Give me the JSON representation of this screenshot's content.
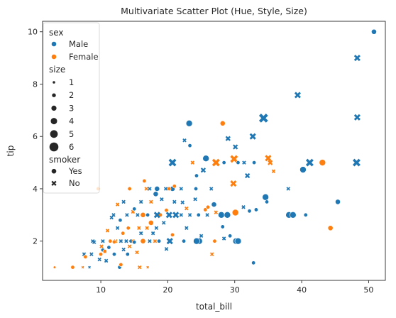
{
  "chart_data": {
    "type": "scatter",
    "title": "Multivariate Scatter Plot (Hue, Style, Size)",
    "xlabel": "total_bill",
    "ylabel": "tip",
    "xlim": [
      1.3,
      52.5
    ],
    "ylim": [
      0.5,
      10.4
    ],
    "xticks": [
      10,
      20,
      30,
      40,
      50
    ],
    "yticks": [
      2,
      4,
      6,
      8,
      10
    ],
    "grid": false,
    "legend_position": "top-left",
    "colors": {
      "Male": "#1f77b4",
      "Female": "#ff7f0e"
    },
    "legend": {
      "hue_title": "sex",
      "hue": [
        "Male",
        "Female"
      ],
      "size_title": "size",
      "sizes": [
        "1",
        "2",
        "3",
        "4",
        "5",
        "6"
      ],
      "style_title": "smoker",
      "styles": [
        "Yes",
        "No"
      ]
    },
    "points": [
      {
        "x": 50.8,
        "y": 10.0,
        "sex": "Male",
        "smoker": "Yes",
        "size": 3
      },
      {
        "x": 48.3,
        "y": 9.0,
        "sex": "Male",
        "smoker": "No",
        "size": 4
      },
      {
        "x": 39.4,
        "y": 7.58,
        "sex": "Male",
        "smoker": "No",
        "size": 4
      },
      {
        "x": 48.3,
        "y": 6.73,
        "sex": "Male",
        "smoker": "No",
        "size": 4
      },
      {
        "x": 34.3,
        "y": 6.7,
        "sex": "Male",
        "smoker": "No",
        "size": 6
      },
      {
        "x": 23.2,
        "y": 6.5,
        "sex": "Male",
        "smoker": "Yes",
        "size": 4
      },
      {
        "x": 28.2,
        "y": 6.5,
        "sex": "Female",
        "smoker": "Yes",
        "size": 3
      },
      {
        "x": 32.7,
        "y": 6.0,
        "sex": "Male",
        "smoker": "No",
        "size": 4
      },
      {
        "x": 29.0,
        "y": 5.92,
        "sex": "Male",
        "smoker": "No",
        "size": 3
      },
      {
        "x": 30.1,
        "y": 5.6,
        "sex": "Male",
        "smoker": "No",
        "size": 3
      },
      {
        "x": 23.3,
        "y": 5.65,
        "sex": "Male",
        "smoker": "Yes",
        "size": 2
      },
      {
        "x": 22.5,
        "y": 5.85,
        "sex": "Male",
        "smoker": "No",
        "size": 2
      },
      {
        "x": 25.7,
        "y": 5.16,
        "sex": "Male",
        "smoker": "Yes",
        "size": 4
      },
      {
        "x": 29.9,
        "y": 5.14,
        "sex": "Female",
        "smoker": "No",
        "size": 5
      },
      {
        "x": 35.0,
        "y": 5.17,
        "sex": "Female",
        "smoker": "No",
        "size": 4
      },
      {
        "x": 28.4,
        "y": 5.0,
        "sex": "Male",
        "smoker": "Yes",
        "size": 2
      },
      {
        "x": 20.7,
        "y": 5.0,
        "sex": "Male",
        "smoker": "No",
        "size": 5
      },
      {
        "x": 27.2,
        "y": 5.0,
        "sex": "Female",
        "smoker": "No",
        "size": 5
      },
      {
        "x": 30.5,
        "y": 5.0,
        "sex": "Male",
        "smoker": "Yes",
        "size": 2
      },
      {
        "x": 35.3,
        "y": 5.0,
        "sex": "Female",
        "smoker": "No",
        "size": 3
      },
      {
        "x": 41.2,
        "y": 5.0,
        "sex": "Male",
        "smoker": "No",
        "size": 5
      },
      {
        "x": 43.1,
        "y": 5.0,
        "sex": "Female",
        "smoker": "Yes",
        "size": 4
      },
      {
        "x": 48.2,
        "y": 5.0,
        "sex": "Male",
        "smoker": "No",
        "size": 5
      },
      {
        "x": 23.7,
        "y": 5.0,
        "sex": "Female",
        "smoker": "No",
        "size": 2
      },
      {
        "x": 31.4,
        "y": 5.0,
        "sex": "Male",
        "smoker": "No",
        "size": 2
      },
      {
        "x": 32.9,
        "y": 5.0,
        "sex": "Male",
        "smoker": "Yes",
        "size": 2
      },
      {
        "x": 40.2,
        "y": 4.73,
        "sex": "Male",
        "smoker": "Yes",
        "size": 4
      },
      {
        "x": 35.8,
        "y": 4.67,
        "sex": "Female",
        "smoker": "No",
        "size": 2
      },
      {
        "x": 25.3,
        "y": 4.71,
        "sex": "Male",
        "smoker": "No",
        "size": 3
      },
      {
        "x": 31.9,
        "y": 4.5,
        "sex": "Male",
        "smoker": "No",
        "size": 3
      },
      {
        "x": 24.3,
        "y": 4.5,
        "sex": "Male",
        "smoker": "Yes",
        "size": 2
      },
      {
        "x": 29.8,
        "y": 4.2,
        "sex": "Female",
        "smoker": "No",
        "size": 4
      },
      {
        "x": 38.0,
        "y": 4.0,
        "sex": "Male",
        "smoker": "No",
        "size": 2
      },
      {
        "x": 26.5,
        "y": 4.0,
        "sex": "Male",
        "smoker": "No",
        "size": 2
      },
      {
        "x": 24.2,
        "y": 4.0,
        "sex": "Male",
        "smoker": "Yes",
        "size": 2
      },
      {
        "x": 20.7,
        "y": 4.0,
        "sex": "Male",
        "smoker": "Yes",
        "size": 3
      },
      {
        "x": 20.2,
        "y": 4.0,
        "sex": "Female",
        "smoker": "Yes",
        "size": 2
      },
      {
        "x": 18.4,
        "y": 4.0,
        "sex": "Male",
        "smoker": "Yes",
        "size": 3
      },
      {
        "x": 19.7,
        "y": 4.0,
        "sex": "Male",
        "smoker": "No",
        "size": 2
      },
      {
        "x": 16.8,
        "y": 4.0,
        "sex": "Female",
        "smoker": "No",
        "size": 2
      },
      {
        "x": 9.6,
        "y": 4.0,
        "sex": "Female",
        "smoker": "Yes",
        "size": 2
      },
      {
        "x": 14.3,
        "y": 4.0,
        "sex": "Female",
        "smoker": "Yes",
        "size": 2
      },
      {
        "x": 16.5,
        "y": 4.3,
        "sex": "Female",
        "smoker": "Yes",
        "size": 2
      },
      {
        "x": 17.3,
        "y": 4.0,
        "sex": "Male",
        "smoker": "No",
        "size": 2
      },
      {
        "x": 21.0,
        "y": 4.1,
        "sex": "Female",
        "smoker": "Yes",
        "size": 2
      },
      {
        "x": 22.0,
        "y": 4.0,
        "sex": "Male",
        "smoker": "No",
        "size": 2
      },
      {
        "x": 24.1,
        "y": 3.6,
        "sex": "Male",
        "smoker": "No",
        "size": 2
      },
      {
        "x": 34.6,
        "y": 3.68,
        "sex": "Male",
        "smoker": "Yes",
        "size": 4
      },
      {
        "x": 34.8,
        "y": 3.5,
        "sex": "Male",
        "smoker": "Yes",
        "size": 2
      },
      {
        "x": 45.4,
        "y": 3.5,
        "sex": "Male",
        "smoker": "Yes",
        "size": 3
      },
      {
        "x": 26.9,
        "y": 3.4,
        "sex": "Male",
        "smoker": "Yes",
        "size": 3
      },
      {
        "x": 31.3,
        "y": 3.3,
        "sex": "Male",
        "smoker": "No",
        "size": 2
      },
      {
        "x": 22.8,
        "y": 3.25,
        "sex": "Female",
        "smoker": "No",
        "size": 2
      },
      {
        "x": 25.6,
        "y": 3.2,
        "sex": "Female",
        "smoker": "Yes",
        "size": 2
      },
      {
        "x": 27.2,
        "y": 3.1,
        "sex": "Female",
        "smoker": "No",
        "size": 2
      },
      {
        "x": 28.0,
        "y": 3.0,
        "sex": "Male",
        "smoker": "Yes",
        "size": 4
      },
      {
        "x": 28.9,
        "y": 3.0,
        "sex": "Male",
        "smoker": "Yes",
        "size": 4
      },
      {
        "x": 30.1,
        "y": 3.09,
        "sex": "Female",
        "smoker": "Yes",
        "size": 4
      },
      {
        "x": 32.2,
        "y": 3.15,
        "sex": "Male",
        "smoker": "Yes",
        "size": 2
      },
      {
        "x": 33.2,
        "y": 3.2,
        "sex": "Male",
        "smoker": "Yes",
        "size": 2
      },
      {
        "x": 38.1,
        "y": 3.0,
        "sex": "Male",
        "smoker": "Yes",
        "size": 4
      },
      {
        "x": 38.7,
        "y": 3.0,
        "sex": "Male",
        "smoker": "Yes",
        "size": 4
      },
      {
        "x": 40.6,
        "y": 3.0,
        "sex": "Male",
        "smoker": "Yes",
        "size": 2
      },
      {
        "x": 44.3,
        "y": 2.5,
        "sex": "Female",
        "smoker": "Yes",
        "size": 3
      },
      {
        "x": 28.2,
        "y": 2.55,
        "sex": "Male",
        "smoker": "Yes",
        "size": 2
      },
      {
        "x": 29.3,
        "y": 2.2,
        "sex": "Male",
        "smoker": "Yes",
        "size": 2
      },
      {
        "x": 30.2,
        "y": 2.0,
        "sex": "Male",
        "smoker": "Yes",
        "size": 4
      },
      {
        "x": 30.5,
        "y": 2.0,
        "sex": "Male",
        "smoker": "Yes",
        "size": 4
      },
      {
        "x": 28.4,
        "y": 2.1,
        "sex": "Male",
        "smoker": "No",
        "size": 2
      },
      {
        "x": 26.6,
        "y": 1.5,
        "sex": "Female",
        "smoker": "No",
        "size": 2
      },
      {
        "x": 32.8,
        "y": 1.17,
        "sex": "Male",
        "smoker": "Yes",
        "size": 2
      },
      {
        "x": 27.0,
        "y": 2.0,
        "sex": "Female",
        "smoker": "Yes",
        "size": 2
      },
      {
        "x": 25.0,
        "y": 2.2,
        "sex": "Male",
        "smoker": "No",
        "size": 2
      },
      {
        "x": 24.7,
        "y": 2.0,
        "sex": "Male",
        "smoker": "Yes",
        "size": 4
      },
      {
        "x": 24.3,
        "y": 2.0,
        "sex": "Male",
        "smoker": "Yes",
        "size": 4
      },
      {
        "x": 22.4,
        "y": 2.0,
        "sex": "Male",
        "smoker": "Yes",
        "size": 2
      },
      {
        "x": 22.8,
        "y": 2.5,
        "sex": "Male",
        "smoker": "No",
        "size": 2
      },
      {
        "x": 20.3,
        "y": 2.0,
        "sex": "Male",
        "smoker": "No",
        "size": 4
      },
      {
        "x": 23.3,
        "y": 3.0,
        "sex": "Male",
        "smoker": "No",
        "size": 2
      },
      {
        "x": 22.0,
        "y": 3.0,
        "sex": "Male",
        "smoker": "No",
        "size": 2
      },
      {
        "x": 21.2,
        "y": 3.0,
        "sex": "Male",
        "smoker": "No",
        "size": 4
      },
      {
        "x": 20.2,
        "y": 3.0,
        "sex": "Male",
        "smoker": "No",
        "size": 4
      },
      {
        "x": 19.8,
        "y": 3.18,
        "sex": "Female",
        "smoker": "Yes",
        "size": 2
      },
      {
        "x": 18.9,
        "y": 3.0,
        "sex": "Female",
        "smoker": "Yes",
        "size": 2
      },
      {
        "x": 18.4,
        "y": 3.0,
        "sex": "Male",
        "smoker": "No",
        "size": 4
      },
      {
        "x": 17.0,
        "y": 3.0,
        "sex": "Male",
        "smoker": "Yes",
        "size": 2
      },
      {
        "x": 16.3,
        "y": 3.0,
        "sex": "Female",
        "smoker": "Yes",
        "size": 3
      },
      {
        "x": 15.5,
        "y": 3.0,
        "sex": "Male",
        "smoker": "No",
        "size": 2
      },
      {
        "x": 14.8,
        "y": 3.12,
        "sex": "Female",
        "smoker": "No",
        "size": 2
      },
      {
        "x": 13.9,
        "y": 3.0,
        "sex": "Male",
        "smoker": "No",
        "size": 2
      },
      {
        "x": 12.9,
        "y": 2.8,
        "sex": "Male",
        "smoker": "Yes",
        "size": 2
      },
      {
        "x": 11.6,
        "y": 2.9,
        "sex": "Male",
        "smoker": "No",
        "size": 2
      },
      {
        "x": 10.3,
        "y": 2.0,
        "sex": "Male",
        "smoker": "No",
        "size": 2
      },
      {
        "x": 10.0,
        "y": 1.5,
        "sex": "Female",
        "smoker": "Yes",
        "size": 2
      },
      {
        "x": 10.6,
        "y": 1.6,
        "sex": "Female",
        "smoker": "No",
        "size": 2
      },
      {
        "x": 11.2,
        "y": 1.76,
        "sex": "Male",
        "smoker": "Yes",
        "size": 2
      },
      {
        "x": 12.0,
        "y": 1.5,
        "sex": "Male",
        "smoker": "Yes",
        "size": 2
      },
      {
        "x": 12.8,
        "y": 1.0,
        "sex": "Male",
        "smoker": "Yes",
        "size": 2
      },
      {
        "x": 13.0,
        "y": 1.1,
        "sex": "Female",
        "smoker": "Yes",
        "size": 2
      },
      {
        "x": 13.4,
        "y": 1.68,
        "sex": "Male",
        "smoker": "No",
        "size": 2
      },
      {
        "x": 7.3,
        "y": 1.0,
        "sex": "Female",
        "smoker": "No",
        "size": 1
      },
      {
        "x": 5.8,
        "y": 1.0,
        "sex": "Female",
        "smoker": "Yes",
        "size": 2
      },
      {
        "x": 3.1,
        "y": 1.0,
        "sex": "Female",
        "smoker": "Yes",
        "size": 1
      },
      {
        "x": 7.5,
        "y": 1.5,
        "sex": "Male",
        "smoker": "No",
        "size": 2
      },
      {
        "x": 8.6,
        "y": 1.5,
        "sex": "Male",
        "smoker": "No",
        "size": 2
      },
      {
        "x": 8.8,
        "y": 2.0,
        "sex": "Male",
        "smoker": "No",
        "size": 2
      },
      {
        "x": 9.8,
        "y": 1.3,
        "sex": "Male",
        "smoker": "No",
        "size": 2
      },
      {
        "x": 10.1,
        "y": 1.8,
        "sex": "Female",
        "smoker": "No",
        "size": 2
      },
      {
        "x": 10.3,
        "y": 1.66,
        "sex": "Male",
        "smoker": "Yes",
        "size": 2
      },
      {
        "x": 10.6,
        "y": 1.61,
        "sex": "Female",
        "smoker": "Yes",
        "size": 2
      },
      {
        "x": 11.4,
        "y": 2.0,
        "sex": "Female",
        "smoker": "Yes",
        "size": 2
      },
      {
        "x": 12.2,
        "y": 2.0,
        "sex": "Female",
        "smoker": "No",
        "size": 2
      },
      {
        "x": 12.5,
        "y": 2.5,
        "sex": "Male",
        "smoker": "No",
        "size": 2
      },
      {
        "x": 13.0,
        "y": 2.0,
        "sex": "Male",
        "smoker": "No",
        "size": 2
      },
      {
        "x": 13.3,
        "y": 2.3,
        "sex": "Female",
        "smoker": "Yes",
        "size": 2
      },
      {
        "x": 13.8,
        "y": 2.0,
        "sex": "Male",
        "smoker": "No",
        "size": 2
      },
      {
        "x": 14.1,
        "y": 2.5,
        "sex": "Female",
        "smoker": "Yes",
        "size": 2
      },
      {
        "x": 14.5,
        "y": 2.0,
        "sex": "Male",
        "smoker": "Yes",
        "size": 2
      },
      {
        "x": 14.8,
        "y": 2.0,
        "sex": "Female",
        "smoker": "No",
        "size": 2
      },
      {
        "x": 15.0,
        "y": 1.96,
        "sex": "Male",
        "smoker": "Yes",
        "size": 2
      },
      {
        "x": 15.4,
        "y": 1.57,
        "sex": "Female",
        "smoker": "No",
        "size": 2
      },
      {
        "x": 15.7,
        "y": 2.5,
        "sex": "Female",
        "smoker": "No",
        "size": 2
      },
      {
        "x": 16.0,
        "y": 2.3,
        "sex": "Male",
        "smoker": "No",
        "size": 2
      },
      {
        "x": 16.3,
        "y": 2.0,
        "sex": "Female",
        "smoker": "Yes",
        "size": 3
      },
      {
        "x": 16.9,
        "y": 2.5,
        "sex": "Female",
        "smoker": "No",
        "size": 2
      },
      {
        "x": 17.3,
        "y": 2.0,
        "sex": "Male",
        "smoker": "No",
        "size": 2
      },
      {
        "x": 17.5,
        "y": 2.7,
        "sex": "Female",
        "smoker": "Yes",
        "size": 3
      },
      {
        "x": 17.8,
        "y": 2.3,
        "sex": "Male",
        "smoker": "No",
        "size": 2
      },
      {
        "x": 18.1,
        "y": 2.0,
        "sex": "Female",
        "smoker": "No",
        "size": 2
      },
      {
        "x": 18.3,
        "y": 2.5,
        "sex": "Male",
        "smoker": "No",
        "size": 2
      },
      {
        "x": 18.7,
        "y": 2.0,
        "sex": "Male",
        "smoker": "Yes",
        "size": 2
      },
      {
        "x": 19.4,
        "y": 2.7,
        "sex": "Male",
        "smoker": "No",
        "size": 2
      },
      {
        "x": 19.8,
        "y": 1.7,
        "sex": "Male",
        "smoker": "No",
        "size": 2
      },
      {
        "x": 20.7,
        "y": 2.24,
        "sex": "Female",
        "smoker": "Yes",
        "size": 2
      },
      {
        "x": 21.0,
        "y": 3.5,
        "sex": "Male",
        "smoker": "No",
        "size": 2
      },
      {
        "x": 22.2,
        "y": 3.48,
        "sex": "Male",
        "smoker": "No",
        "size": 2
      },
      {
        "x": 16.0,
        "y": 3.5,
        "sex": "Male",
        "smoker": "No",
        "size": 2
      },
      {
        "x": 15.0,
        "y": 3.23,
        "sex": "Male",
        "smoker": "Yes",
        "size": 2
      },
      {
        "x": 13.4,
        "y": 3.5,
        "sex": "Male",
        "smoker": "No",
        "size": 2
      },
      {
        "x": 12.5,
        "y": 3.4,
        "sex": "Female",
        "smoker": "No",
        "size": 2
      },
      {
        "x": 11.9,
        "y": 3.0,
        "sex": "Male",
        "smoker": "No",
        "size": 2
      },
      {
        "x": 17.5,
        "y": 3.5,
        "sex": "Female",
        "smoker": "No",
        "size": 2
      },
      {
        "x": 18.2,
        "y": 3.8,
        "sex": "Male",
        "smoker": "Yes",
        "size": 3
      },
      {
        "x": 19.1,
        "y": 3.6,
        "sex": "Male",
        "smoker": "No",
        "size": 2
      },
      {
        "x": 24.6,
        "y": 3.0,
        "sex": "Male",
        "smoker": "Yes",
        "size": 2
      },
      {
        "x": 25.9,
        "y": 3.0,
        "sex": "Male",
        "smoker": "No",
        "size": 2
      },
      {
        "x": 26.0,
        "y": 3.3,
        "sex": "Female",
        "smoker": "Yes",
        "size": 2
      },
      {
        "x": 7.7,
        "y": 1.4,
        "sex": "Female",
        "smoker": "Yes",
        "size": 2
      },
      {
        "x": 9.0,
        "y": 1.96,
        "sex": "Male",
        "smoker": "No",
        "size": 2
      },
      {
        "x": 14.0,
        "y": 1.5,
        "sex": "Male",
        "smoker": "Yes",
        "size": 2
      },
      {
        "x": 17.0,
        "y": 1.0,
        "sex": "Female",
        "smoker": "No",
        "size": 1
      },
      {
        "x": 8.3,
        "y": 1.0,
        "sex": "Male",
        "smoker": "No",
        "size": 1
      },
      {
        "x": 15.8,
        "y": 1.0,
        "sex": "Female",
        "smoker": "No",
        "size": 2
      },
      {
        "x": 11.0,
        "y": 2.4,
        "sex": "Female",
        "smoker": "No",
        "size": 2
      },
      {
        "x": 10.8,
        "y": 1.25,
        "sex": "Male",
        "smoker": "No",
        "size": 2
      },
      {
        "x": 12.0,
        "y": 1.97,
        "sex": "Female",
        "smoker": "Yes",
        "size": 2
      },
      {
        "x": 14.3,
        "y": 1.8,
        "sex": "Female",
        "smoker": "No",
        "size": 2
      }
    ]
  }
}
